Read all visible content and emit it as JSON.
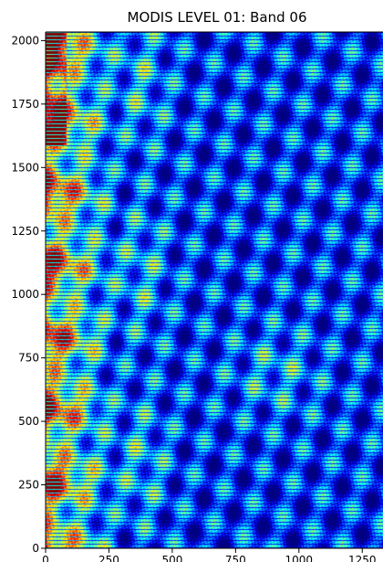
{
  "chart_data": {
    "type": "heatmap",
    "title": "MODIS LEVEL 01: Band 06",
    "xlabel": "",
    "ylabel": "",
    "xlim": [
      0,
      1354
    ],
    "ylim": [
      0,
      2030
    ],
    "x_ticks": [
      0,
      250,
      500,
      750,
      1000,
      1250
    ],
    "y_ticks": [
      0,
      250,
      500,
      750,
      1000,
      1250,
      1500,
      1750,
      2000
    ],
    "colormap": "jet",
    "grid": false,
    "legend": "none"
  }
}
